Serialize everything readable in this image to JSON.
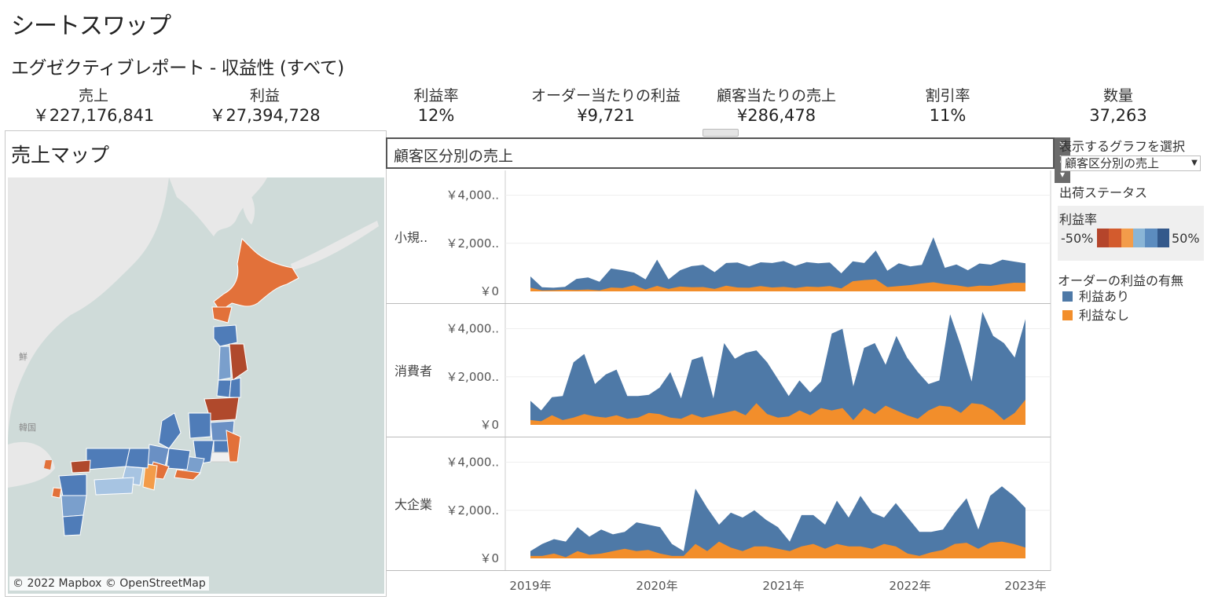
{
  "header": {
    "title": "シートスワップ",
    "subtitle": "エグゼクティブレポート - 収益性 (すべて)"
  },
  "kpis": [
    {
      "label": "売上",
      "value": "￥227,176,841"
    },
    {
      "label": "利益",
      "value": "￥27,394,728"
    },
    {
      "label": "利益率",
      "value": "12%"
    },
    {
      "label": "オーダー当たりの利益",
      "value": "¥9,721"
    },
    {
      "label": "顧客当たりの売上",
      "value": "¥286,478"
    },
    {
      "label": "割引率",
      "value": "11%"
    },
    {
      "label": "数量",
      "value": "37,263"
    }
  ],
  "map": {
    "title": "売上マップ",
    "credit": "© 2022 Mapbox © OpenStreetMap",
    "place_labels": [
      "韓国",
      "鮮"
    ],
    "colors": {
      "water": "#cfdbd9",
      "land": "#e8e8e8",
      "high": "#e2713a",
      "low": "#4f7cb8"
    }
  },
  "chart": {
    "title": "顧客区分別の売上",
    "controls": [
      "close-icon",
      "pin-icon",
      "menu-icon"
    ]
  },
  "chart_data": {
    "type": "area",
    "title": "顧客区分別の売上",
    "x_ticks": [
      "2019年",
      "2020年",
      "2021年",
      "2022年",
      "2023年"
    ],
    "x_range": [
      "2019-01",
      "2023-01"
    ],
    "y_ticks": [
      "￥4,000..",
      "￥2,000..",
      "￥0"
    ],
    "ylim": [
      0,
      4900
    ],
    "panels": [
      {
        "name": "小規..",
        "series": [
          {
            "name": "利益あり",
            "values": [
              620,
              170,
              150,
              190,
              520,
              580,
              400,
              950,
              880,
              780,
              500,
              1320,
              500,
              880,
              1050,
              1100,
              800,
              1180,
              1200,
              1040,
              1210,
              1180,
              1260,
              1060,
              1220,
              1170,
              1200,
              750,
              1250,
              1180,
              1700,
              860,
              1170,
              1040,
              1100,
              2250,
              980,
              1120,
              880,
              1160,
              1110,
              1320,
              1240,
              1170
            ]
          },
          {
            "name": "利益なし",
            "values": [
              150,
              40,
              50,
              70,
              60,
              80,
              40,
              160,
              140,
              250,
              80,
              230,
              100,
              200,
              170,
              180,
              100,
              240,
              160,
              150,
              220,
              160,
              190,
              140,
              200,
              180,
              220,
              120,
              420,
              470,
              500,
              180,
              220,
              260,
              330,
              380,
              300,
              250,
              180,
              240,
              230,
              300,
              360,
              350
            ]
          }
        ]
      },
      {
        "name": "消費者",
        "series": [
          {
            "name": "利益あり",
            "values": [
              1000,
              600,
              1150,
              1200,
              2600,
              2950,
              1700,
              2100,
              2300,
              1200,
              1200,
              1250,
              1550,
              2200,
              1100,
              2700,
              2850,
              1100,
              3400,
              2750,
              3000,
              3100,
              2600,
              1900,
              1200,
              1850,
              1350,
              1800,
              3800,
              4000,
              1600,
              3200,
              3400,
              2500,
              3700,
              2800,
              2200,
              1700,
              1850,
              4600,
              3300,
              1800,
              4700,
              3700,
              3400,
              2800,
              4400
            ]
          },
          {
            "name": "利益なし",
            "values": [
              200,
              150,
              400,
              200,
              300,
              450,
              350,
              300,
              400,
              250,
              300,
              500,
              450,
              300,
              250,
              450,
              300,
              400,
              500,
              600,
              400,
              900,
              450,
              300,
              350,
              600,
              400,
              700,
              600,
              700,
              200,
              700,
              450,
              800,
              600,
              400,
              250,
              600,
              800,
              750,
              500,
              900,
              850,
              600,
              200,
              500,
              1050
            ]
          }
        ]
      },
      {
        "name": "大企業",
        "series": [
          {
            "name": "利益あり",
            "values": [
              300,
              600,
              800,
              700,
              1300,
              900,
              1200,
              1000,
              1100,
              1500,
              1400,
              1300,
              600,
              300,
              2900,
              2100,
              1400,
              1900,
              1700,
              2000,
              1600,
              1300,
              700,
              1800,
              1800,
              1400,
              2400,
              1700,
              2600,
              1900,
              1700,
              2300,
              1700,
              1100,
              1100,
              1200,
              1900,
              2500,
              1200,
              2600,
              3000,
              2600,
              2100
            ]
          },
          {
            "name": "利益なし",
            "values": [
              100,
              100,
              200,
              50,
              300,
              150,
              200,
              300,
              400,
              300,
              350,
              200,
              100,
              100,
              600,
              300,
              700,
              450,
              300,
              500,
              500,
              400,
              300,
              500,
              600,
              400,
              600,
              500,
              500,
              400,
              600,
              500,
              200,
              100,
              250,
              350,
              600,
              650,
              400,
              650,
              700,
              600,
              450
            ]
          }
        ]
      }
    ],
    "colors": {
      "利益あり": "#4e79a7",
      "利益なし": "#f28e2b"
    }
  },
  "controls": {
    "selector_label": "表示するグラフを選択",
    "selector_value": "顧客区分別の売上",
    "shipping_label": "出荷ステータス",
    "ratio_label": "利益率",
    "ratio_min": "-50%",
    "ratio_max": "50%",
    "ratio_colors": [
      "#b5452b",
      "#d35b2d",
      "#f39c4a",
      "#8ab5d6",
      "#5c8cbf",
      "#34598b"
    ],
    "legend_title": "オーダーの利益の有無",
    "legend_items": [
      {
        "label": "利益あり",
        "color": "#4e79a7"
      },
      {
        "label": "利益なし",
        "color": "#f28e2b"
      }
    ]
  }
}
